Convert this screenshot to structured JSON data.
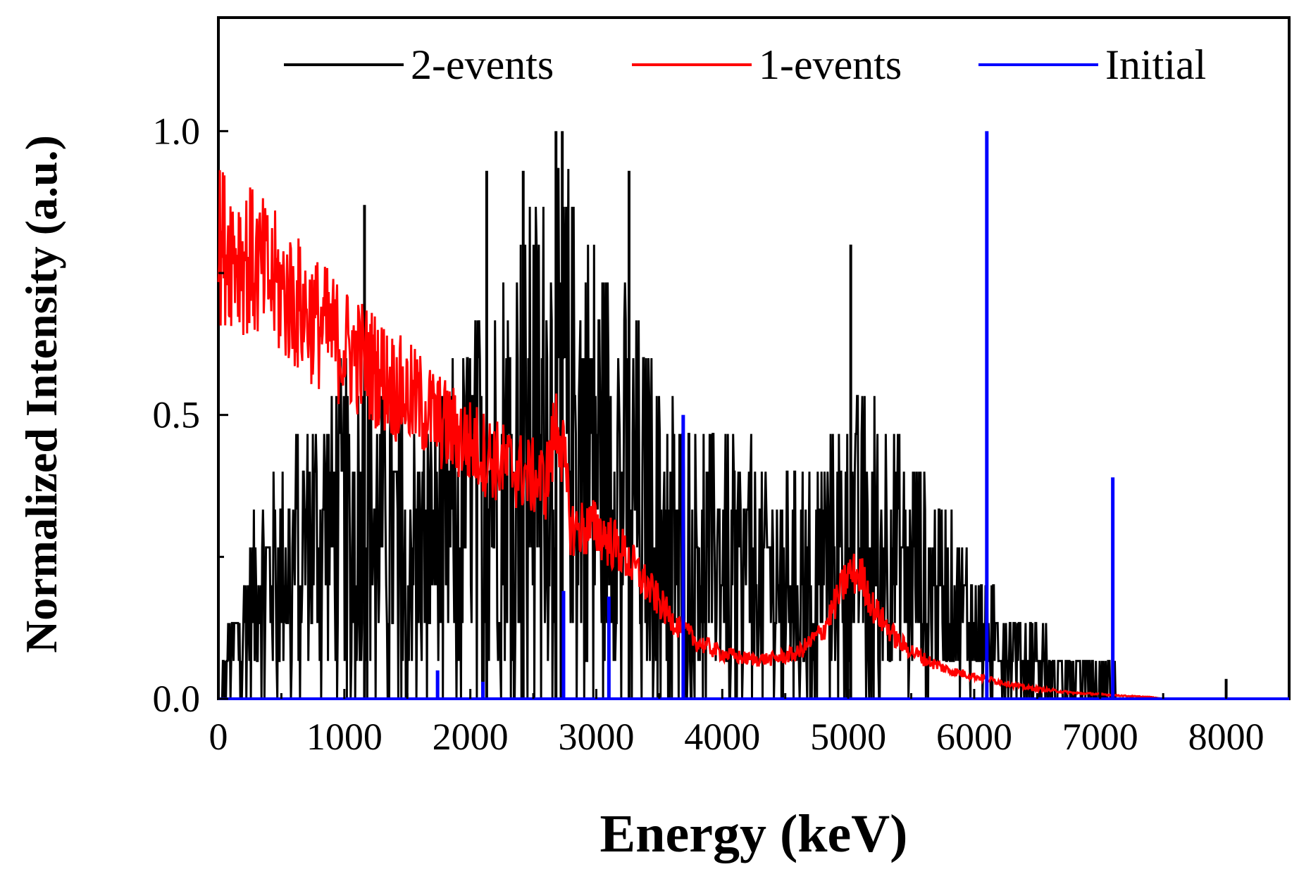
{
  "chart_data": {
    "type": "line",
    "title": "",
    "xlabel": "Energy (keV)",
    "ylabel": "Normalized Intensity (a.u.)",
    "xlim": [
      0,
      8500
    ],
    "ylim": [
      0,
      1.2
    ],
    "xticks": [
      0,
      1000,
      2000,
      3000,
      4000,
      5000,
      6000,
      7000,
      8000
    ],
    "xtick_labels": [
      "0",
      "1000",
      "2000",
      "3000",
      "4000",
      "5000",
      "6000",
      "7000",
      "8000"
    ],
    "yticks": [
      0.0,
      0.5,
      1.0
    ],
    "ytick_labels": [
      "0.0",
      "0.5",
      "1.0"
    ],
    "grid": false,
    "legend_position": "top",
    "series": [
      {
        "name": "2-events",
        "color": "#000000",
        "x": [
          0,
          200,
          400,
          600,
          800,
          1000,
          1200,
          1400,
          1600,
          1800,
          2000,
          2200,
          2400,
          2600,
          2700,
          2800,
          3000,
          3200,
          3400,
          3600,
          3800,
          4000,
          4200,
          4400,
          4600,
          4800,
          5000,
          5200,
          5400,
          5600,
          5800,
          6000,
          6200,
          6400,
          6600,
          6800,
          7000,
          7200,
          7400,
          7500,
          7600,
          8000,
          8500
        ],
        "values": [
          0.0,
          0.15,
          0.22,
          0.26,
          0.3,
          0.32,
          0.33,
          0.3,
          0.27,
          0.3,
          0.36,
          0.42,
          0.46,
          0.5,
          0.52,
          0.5,
          0.45,
          0.4,
          0.34,
          0.3,
          0.28,
          0.26,
          0.24,
          0.22,
          0.22,
          0.25,
          0.28,
          0.29,
          0.26,
          0.22,
          0.18,
          0.14,
          0.11,
          0.08,
          0.06,
          0.04,
          0.03,
          0.02,
          0.01,
          0.005,
          0.0,
          0.0,
          0.0
        ],
        "peaks": [
          {
            "x": 1160,
            "y": 0.87
          },
          {
            "x": 2130,
            "y": 0.93
          },
          {
            "x": 2420,
            "y": 0.93
          },
          {
            "x": 2680,
            "y": 1.0
          },
          {
            "x": 2730,
            "y": 1.0
          },
          {
            "x": 3260,
            "y": 0.93
          },
          {
            "x": 5020,
            "y": 0.8
          },
          {
            "x": 8000,
            "y": 0.035
          }
        ]
      },
      {
        "name": "1-events",
        "color": "#ff0000",
        "x": [
          0,
          100,
          200,
          400,
          600,
          800,
          1000,
          1200,
          1400,
          1600,
          1800,
          2000,
          2200,
          2400,
          2600,
          2700,
          2800,
          3000,
          3200,
          3400,
          3600,
          3800,
          4000,
          4200,
          4400,
          4600,
          4800,
          5000,
          5100,
          5200,
          5400,
          5600,
          5800,
          6000,
          6200,
          6400,
          6600,
          6800,
          7000,
          7200,
          7400,
          7500
        ],
        "values": [
          0.8,
          0.8,
          0.78,
          0.74,
          0.7,
          0.66,
          0.62,
          0.59,
          0.55,
          0.52,
          0.48,
          0.45,
          0.42,
          0.4,
          0.38,
          0.5,
          0.3,
          0.3,
          0.26,
          0.2,
          0.14,
          0.1,
          0.08,
          0.07,
          0.07,
          0.08,
          0.12,
          0.22,
          0.22,
          0.16,
          0.1,
          0.07,
          0.05,
          0.04,
          0.03,
          0.02,
          0.015,
          0.01,
          0.008,
          0.005,
          0.003,
          0.0
        ]
      },
      {
        "name": "Initial",
        "color": "#0000ff",
        "type": "stem",
        "x": [
          1740,
          2100,
          2740,
          3100,
          3690,
          6100,
          7100
        ],
        "values": [
          0.05,
          0.03,
          0.19,
          0.18,
          0.5,
          1.0,
          0.39
        ]
      }
    ]
  }
}
